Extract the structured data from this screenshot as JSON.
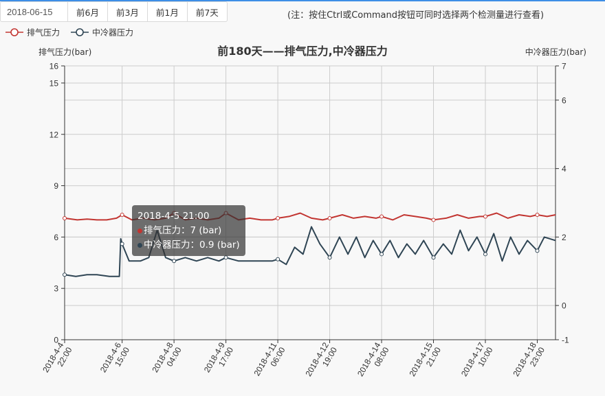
{
  "toolbar": {
    "date_value": "2018-06-15",
    "buttons": [
      "前6月",
      "前3月",
      "前1月",
      "前7天"
    ],
    "note": "(注：按住Ctrl或Command按钮可同时选择两个检测量进行查看)"
  },
  "colors": {
    "exhaust": "#c23531",
    "cooler": "#2f4554",
    "grid": "#cccccc",
    "axis": "#333333"
  },
  "chart_data": {
    "type": "line",
    "title": "前180天——排气压力,中冷器压力",
    "y_left_label": "排气压力(bar)",
    "y_right_label": "中冷器压力(bar)",
    "y_left_ticks": [
      0,
      3,
      6,
      9,
      12,
      15,
      16
    ],
    "y_right_ticks": [
      -1,
      0,
      2,
      4,
      6,
      7
    ],
    "y_left_range": [
      0,
      16
    ],
    "y_right_range": [
      -1,
      7
    ],
    "x_range": [
      "2018-04-04 22:00",
      "2018-04-19 12:00"
    ],
    "x_tick_labels": [
      [
        "2018-4-4",
        "22:00"
      ],
      [
        "2018-4-6",
        "15:00"
      ],
      [
        "2018-4-8",
        "04:00"
      ],
      [
        "2018-4-9",
        "17:00"
      ],
      [
        "2018-4-11",
        "06:00"
      ],
      [
        "2018-4-12",
        "19:00"
      ],
      [
        "2018-4-14",
        "08:00"
      ],
      [
        "2018-4-15",
        "21:00"
      ],
      [
        "2018-4-17",
        "10:00"
      ],
      [
        "2018-4-18",
        "23:00"
      ]
    ],
    "x_tick_times": [
      "2018-04-04 22:00",
      "2018-04-06 15:00",
      "2018-04-08 04:00",
      "2018-04-09 17:00",
      "2018-04-11 06:00",
      "2018-04-12 19:00",
      "2018-04-14 08:00",
      "2018-04-15 21:00",
      "2018-04-17 10:00",
      "2018-04-18 23:00"
    ],
    "grid": true,
    "legend_position": "top-left",
    "series": [
      {
        "name": "排气压力",
        "axis": "left",
        "times": [
          "2018-04-04 22:00",
          "2018-04-05 07:00",
          "2018-04-05 14:00",
          "2018-04-05 21:00",
          "2018-04-06 04:00",
          "2018-04-06 11:00",
          "2018-04-06 15:00",
          "2018-04-06 22:00",
          "2018-04-07 06:00",
          "2018-04-07 14:00",
          "2018-04-07 22:00",
          "2018-04-08 04:00",
          "2018-04-08 12:00",
          "2018-04-08 20:00",
          "2018-04-09 04:00",
          "2018-04-09 12:00",
          "2018-04-09 17:00",
          "2018-04-10 02:00",
          "2018-04-10 10:00",
          "2018-04-10 18:00",
          "2018-04-11 02:00",
          "2018-04-11 06:00",
          "2018-04-11 14:00",
          "2018-04-11 22:00",
          "2018-04-12 06:00",
          "2018-04-12 14:00",
          "2018-04-12 19:00",
          "2018-04-13 04:00",
          "2018-04-13 12:00",
          "2018-04-13 20:00",
          "2018-04-14 04:00",
          "2018-04-14 08:00",
          "2018-04-14 16:00",
          "2018-04-15 00:00",
          "2018-04-15 08:00",
          "2018-04-15 16:00",
          "2018-04-15 21:00",
          "2018-04-16 06:00",
          "2018-04-16 14:00",
          "2018-04-16 22:00",
          "2018-04-17 06:00",
          "2018-04-17 10:00",
          "2018-04-17 18:00",
          "2018-04-18 02:00",
          "2018-04-18 10:00",
          "2018-04-18 18:00",
          "2018-04-18 23:00",
          "2018-04-19 06:00",
          "2018-04-19 12:00"
        ],
        "values": [
          7.1,
          7.0,
          7.05,
          7.0,
          7.0,
          7.1,
          7.3,
          7.0,
          7.1,
          7.0,
          7.1,
          7.4,
          7.0,
          7.1,
          7.0,
          7.1,
          7.4,
          7.0,
          7.1,
          7.0,
          7.0,
          7.1,
          7.2,
          7.4,
          7.1,
          7.0,
          7.1,
          7.3,
          7.1,
          7.2,
          7.1,
          7.2,
          7.0,
          7.3,
          7.2,
          7.1,
          7.0,
          7.1,
          7.3,
          7.1,
          7.2,
          7.2,
          7.4,
          7.1,
          7.3,
          7.2,
          7.3,
          7.2,
          7.3
        ],
        "markers_at": [
          "2018-04-04 22:00",
          "2018-04-06 15:00",
          "2018-04-08 04:00",
          "2018-04-09 17:00",
          "2018-04-11 06:00",
          "2018-04-12 19:00",
          "2018-04-14 08:00",
          "2018-04-15 21:00",
          "2018-04-17 10:00",
          "2018-04-18 23:00"
        ]
      },
      {
        "name": "中冷器压力",
        "axis": "right",
        "times": [
          "2018-04-04 22:00",
          "2018-04-05 06:00",
          "2018-04-05 14:00",
          "2018-04-05 21:00",
          "2018-04-06 06:00",
          "2018-04-06 13:00",
          "2018-04-06 14:00",
          "2018-04-06 15:00",
          "2018-04-06 20:00",
          "2018-04-07 04:00",
          "2018-04-07 10:00",
          "2018-04-07 16:00",
          "2018-04-07 22:00",
          "2018-04-08 04:00",
          "2018-04-08 12:00",
          "2018-04-08 20:00",
          "2018-04-09 04:00",
          "2018-04-09 12:00",
          "2018-04-09 17:00",
          "2018-04-10 02:00",
          "2018-04-10 10:00",
          "2018-04-10 18:00",
          "2018-04-11 02:00",
          "2018-04-11 06:00",
          "2018-04-11 12:00",
          "2018-04-11 18:00",
          "2018-04-12 00:00",
          "2018-04-12 06:00",
          "2018-04-12 12:00",
          "2018-04-12 19:00",
          "2018-04-13 02:00",
          "2018-04-13 08:00",
          "2018-04-13 14:00",
          "2018-04-13 20:00",
          "2018-04-14 02:00",
          "2018-04-14 08:00",
          "2018-04-14 14:00",
          "2018-04-14 20:00",
          "2018-04-15 02:00",
          "2018-04-15 08:00",
          "2018-04-15 14:00",
          "2018-04-15 21:00",
          "2018-04-16 04:00",
          "2018-04-16 10:00",
          "2018-04-16 16:00",
          "2018-04-16 22:00",
          "2018-04-17 04:00",
          "2018-04-17 10:00",
          "2018-04-17 16:00",
          "2018-04-17 22:00",
          "2018-04-18 04:00",
          "2018-04-18 10:00",
          "2018-04-18 16:00",
          "2018-04-18 23:00",
          "2018-04-19 04:00",
          "2018-04-19 12:00"
        ],
        "values": [
          0.9,
          0.85,
          0.9,
          0.9,
          0.85,
          0.85,
          1.95,
          1.8,
          1.3,
          1.3,
          1.4,
          2.2,
          1.4,
          1.3,
          1.4,
          1.3,
          1.4,
          1.3,
          1.4,
          1.3,
          1.3,
          1.3,
          1.3,
          1.35,
          1.2,
          1.7,
          1.5,
          2.3,
          1.8,
          1.4,
          2.0,
          1.5,
          2.0,
          1.4,
          1.9,
          1.5,
          1.9,
          1.4,
          1.8,
          1.5,
          1.9,
          1.4,
          1.8,
          1.5,
          2.2,
          1.6,
          2.0,
          1.5,
          2.1,
          1.3,
          2.0,
          1.5,
          1.9,
          1.6,
          2.0,
          1.9
        ],
        "markers_at": [
          "2018-04-04 22:00",
          "2018-04-06 15:00",
          "2018-04-08 04:00",
          "2018-04-09 17:00",
          "2018-04-11 06:00",
          "2018-04-12 19:00",
          "2018-04-14 08:00",
          "2018-04-15 21:00",
          "2018-04-17 10:00",
          "2018-04-18 23:00"
        ]
      }
    ],
    "tooltip": {
      "title": "2018-4-5 21:00",
      "rows": [
        "排气压力：7 (bar)",
        "中冷器压力：0.9 (bar)"
      ]
    }
  }
}
